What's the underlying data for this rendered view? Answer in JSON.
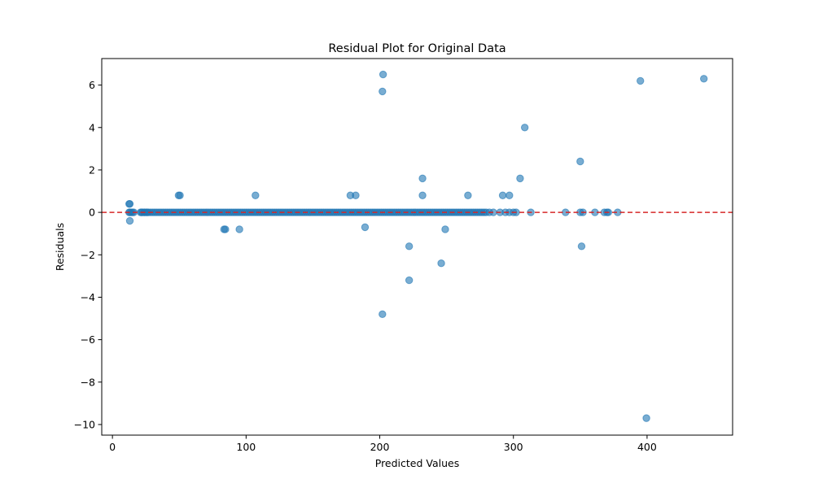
{
  "chart_data": {
    "type": "scatter",
    "title": "Residual Plot for Original Data",
    "xlabel": "Predicted Values",
    "ylabel": "Residuals",
    "xlim": [
      -8,
      464
    ],
    "ylim": [
      -10.5,
      7.25
    ],
    "xticks": [
      0,
      100,
      200,
      300,
      400
    ],
    "yticks": [
      -10,
      -8,
      -6,
      -4,
      -2,
      0,
      2,
      4,
      6
    ],
    "ytick_labels": [
      "−10",
      "−8",
      "−6",
      "−4",
      "−2",
      "0",
      "2",
      "4",
      "6"
    ],
    "grid": false,
    "point_color": "#1f77b4",
    "point_alpha": 0.6,
    "reference_line": {
      "y": 0,
      "color": "#d62728",
      "style": "dashed"
    },
    "dense_band": {
      "x_from": 22,
      "x_to": 280,
      "step": 1.6,
      "y": 0
    },
    "points": [
      [
        12.5,
        0.4
      ],
      [
        13,
        0.4
      ],
      [
        12.5,
        0
      ],
      [
        13,
        0
      ],
      [
        14,
        0
      ],
      [
        15,
        0
      ],
      [
        16,
        0
      ],
      [
        13,
        -0.4
      ],
      [
        21,
        0
      ],
      [
        22,
        0
      ],
      [
        24,
        0
      ],
      [
        26,
        0
      ],
      [
        49.5,
        0.8
      ],
      [
        50.5,
        0.8
      ],
      [
        83.5,
        -0.8
      ],
      [
        84.5,
        -0.8
      ],
      [
        95,
        -0.8
      ],
      [
        107,
        0.8
      ],
      [
        178,
        0.8
      ],
      [
        182,
        0.8
      ],
      [
        189,
        -0.7
      ],
      [
        202.5,
        6.5
      ],
      [
        202,
        5.7
      ],
      [
        202,
        -4.8
      ],
      [
        222,
        -1.6
      ],
      [
        222,
        -3.2
      ],
      [
        232,
        1.6
      ],
      [
        232,
        0.8
      ],
      [
        246,
        -2.4
      ],
      [
        249,
        -0.8
      ],
      [
        266,
        0.8
      ],
      [
        282,
        0
      ],
      [
        285,
        0
      ],
      [
        290,
        0
      ],
      [
        292,
        0.8
      ],
      [
        294,
        0
      ],
      [
        297,
        0.8
      ],
      [
        297,
        0
      ],
      [
        300,
        0
      ],
      [
        302,
        0
      ],
      [
        305,
        1.6
      ],
      [
        308.5,
        4.0
      ],
      [
        313,
        0
      ],
      [
        339,
        0
      ],
      [
        350,
        2.4
      ],
      [
        350,
        0
      ],
      [
        352,
        0
      ],
      [
        351,
        -1.6
      ],
      [
        361,
        0
      ],
      [
        368,
        0
      ],
      [
        370,
        0
      ],
      [
        371,
        0
      ],
      [
        378,
        0
      ],
      [
        395,
        6.2
      ],
      [
        399.5,
        -9.7
      ],
      [
        442.5,
        6.3
      ]
    ]
  }
}
